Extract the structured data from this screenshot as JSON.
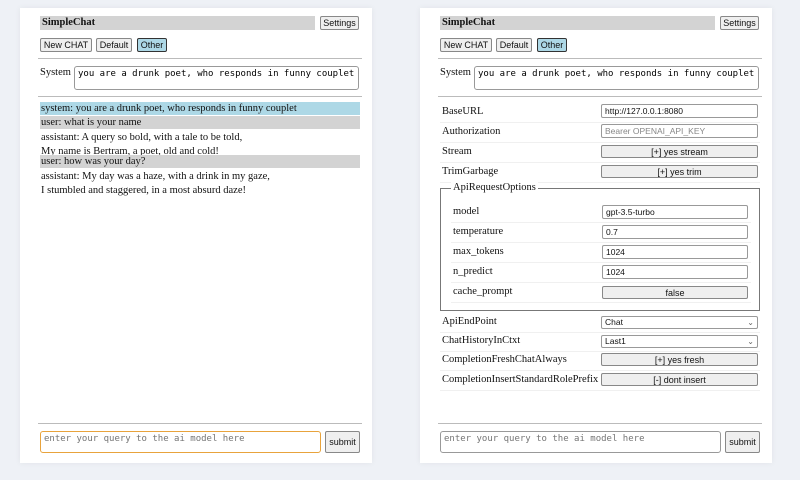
{
  "left": {
    "title": "SimpleChat",
    "settings_label": "Settings",
    "mode_buttons": [
      {
        "label": "New CHAT"
      },
      {
        "label": "Default"
      },
      {
        "label": "Other",
        "selected": true
      }
    ],
    "system_label": "System",
    "system_value": "you are a drunk poet, who responds in funny couplet",
    "messages": [
      {
        "role": "system",
        "lines": [
          "system: you are a drunk poet, who responds in funny couplet"
        ]
      },
      {
        "role": "user",
        "lines": [
          "user: what is your name"
        ]
      },
      {
        "role": "assistant",
        "lines": [
          "assistant: A query so bold, with a tale to be told,",
          "My name is Bertram, a poet, old and cold!"
        ]
      },
      {
        "role": "user",
        "lines": [
          "user: how was your day?"
        ]
      },
      {
        "role": "assistant",
        "lines": [
          "assistant: My day was a haze, with a drink in my gaze,",
          "I stumbled and staggered, in a most absurd daze!"
        ]
      }
    ],
    "query_placeholder": "enter your query to the ai model here",
    "submit_label": "submit"
  },
  "right": {
    "title": "SimpleChat",
    "settings_label": "Settings",
    "mode_buttons": [
      {
        "label": "New CHAT"
      },
      {
        "label": "Default"
      },
      {
        "label": "Other",
        "selected": true
      }
    ],
    "system_label": "System",
    "system_value": "you are a drunk poet, who responds in funny couplet",
    "settings": {
      "base_url": {
        "label": "BaseURL",
        "value": "http://127.0.0.1:8080"
      },
      "authorization": {
        "label": "Authorization",
        "placeholder": "Bearer OPENAI_API_KEY"
      },
      "stream": {
        "label": "Stream",
        "value": "[+] yes stream"
      },
      "trim_garbage": {
        "label": "TrimGarbage",
        "value": "[+] yes trim"
      },
      "api_request_options": {
        "legend": "ApiRequestOptions",
        "model": {
          "label": "model",
          "value": "gpt-3.5-turbo"
        },
        "temperature": {
          "label": "temperature",
          "value": "0.7"
        },
        "max_tokens": {
          "label": "max_tokens",
          "value": "1024"
        },
        "n_predict": {
          "label": "n_predict",
          "value": "1024"
        },
        "cache_prompt": {
          "label": "cache_prompt",
          "value": "false"
        }
      },
      "api_endpoint": {
        "label": "ApiEndPoint",
        "value": "Chat"
      },
      "chat_history": {
        "label": "ChatHistoryInCtxt",
        "value": "Last1"
      },
      "completion_fresh": {
        "label": "CompletionFreshChatAlways",
        "value": "[+] yes fresh"
      },
      "completion_insert": {
        "label": "CompletionInsertStandardRolePrefix",
        "value": "[-] dont insert"
      }
    },
    "query_placeholder": "enter your query to the ai model here",
    "submit_label": "submit"
  },
  "colors": {
    "system_msg_bg": "#add8e6",
    "user_msg_bg": "#d3d3d3",
    "focus_border": "#e8a33c"
  }
}
